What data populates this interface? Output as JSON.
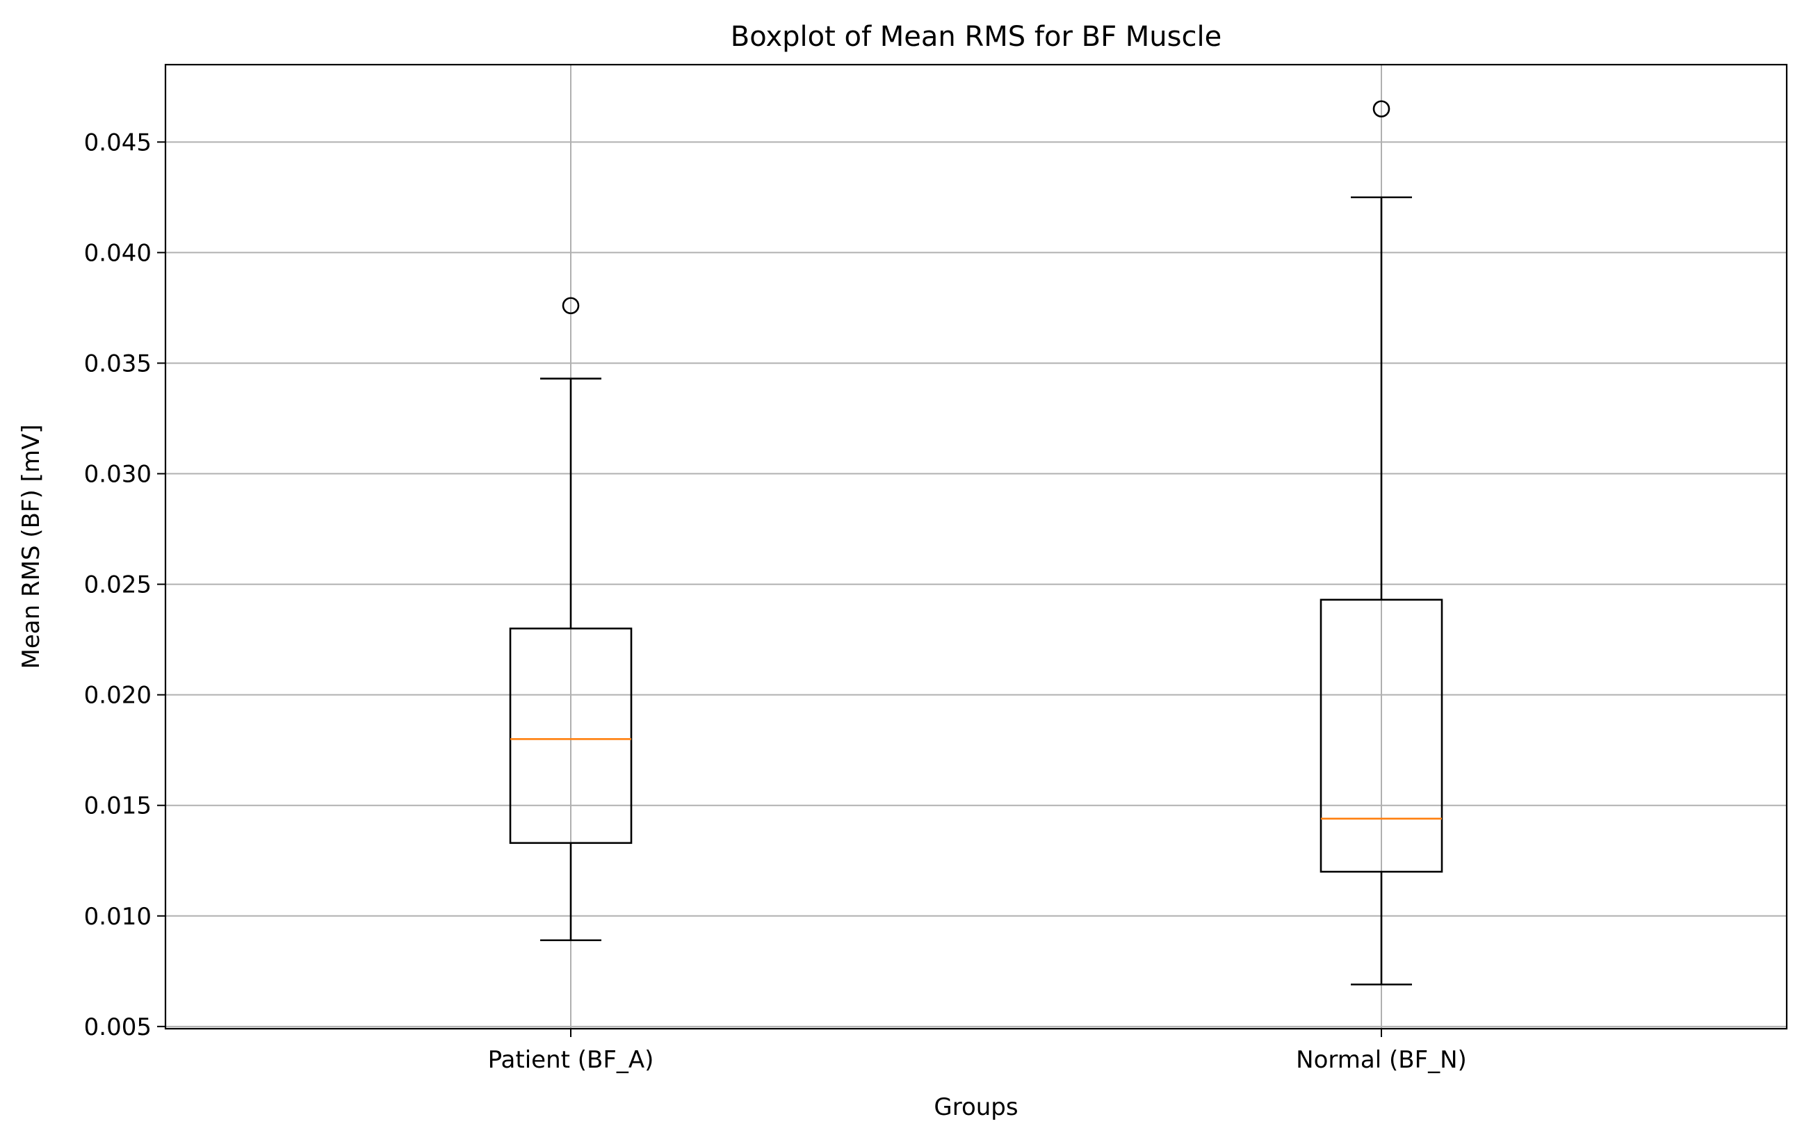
{
  "chart_data": {
    "type": "boxplot",
    "title": "Boxplot of Mean RMS for BF Muscle",
    "xlabel": "Groups",
    "ylabel": "Mean RMS (BF) [mV]",
    "ylim": [
      0.0049,
      0.0485
    ],
    "yticks": [
      0.005,
      0.01,
      0.015,
      0.02,
      0.025,
      0.03,
      0.035,
      0.04,
      0.045
    ],
    "ytick_labels": [
      "0.005",
      "0.010",
      "0.015",
      "0.020",
      "0.025",
      "0.030",
      "0.035",
      "0.040",
      "0.045"
    ],
    "grid": true,
    "categories": [
      "Patient (BF_A)",
      "Normal (BF_N)"
    ],
    "boxes": [
      {
        "label": "Patient (BF_A)",
        "whisker_low": 0.0089,
        "q1": 0.0133,
        "median": 0.018,
        "q3": 0.023,
        "whisker_high": 0.0343,
        "outliers": [
          0.0376
        ]
      },
      {
        "label": "Normal (BF_N)",
        "whisker_low": 0.0069,
        "q1": 0.012,
        "median": 0.0144,
        "q3": 0.0243,
        "whisker_high": 0.0425,
        "outliers": [
          0.0465
        ]
      }
    ],
    "colors": {
      "box": "#000000",
      "median": "#ff7f0e",
      "grid": "#b0b0b0"
    }
  }
}
